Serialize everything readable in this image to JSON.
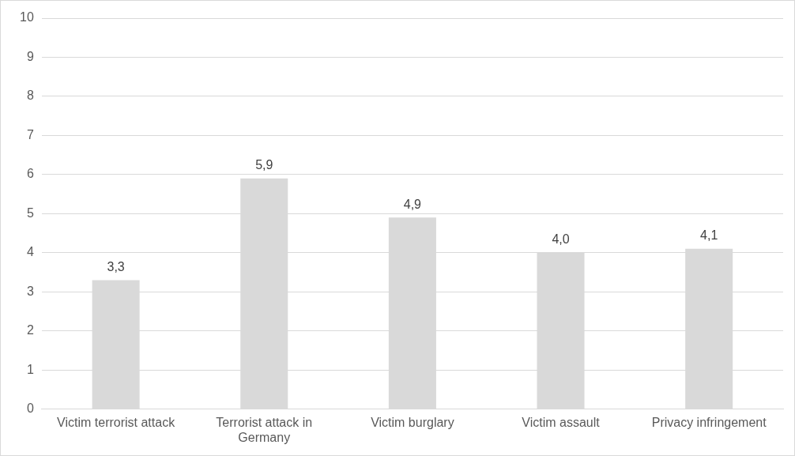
{
  "chart_data": {
    "type": "bar",
    "categories": [
      "Victim terrorist attack",
      "Terrorist attack in Germany",
      "Victim burglary",
      "Victim assault",
      "Privacy infringement"
    ],
    "values": [
      3.3,
      5.9,
      4.9,
      4.0,
      4.1
    ],
    "value_labels": [
      "3,3",
      "5,9",
      "4,9",
      "4,0",
      "4,1"
    ],
    "color": "#d9d9d9",
    "ylim": [
      0,
      10
    ],
    "yticks": [
      0,
      1,
      2,
      3,
      4,
      5,
      6,
      7,
      8,
      9,
      10
    ],
    "grid": "y",
    "legend": false
  }
}
